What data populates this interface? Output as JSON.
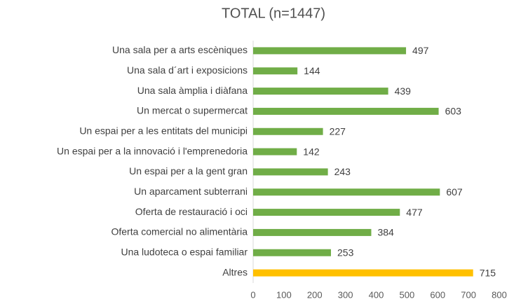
{
  "chart_data": {
    "type": "hbar",
    "title": "TOTAL (n=1447)",
    "categories": [
      "Una sala per a arts escèniques",
      "Una sala d´art i exposicions",
      "Una sala àmplia i diàfana",
      "Un mercat o supermercat",
      "Un espai per a les entitats del municipi",
      "Un espai per a la innovació i l'emprenedoria",
      "Un espai per a la gent gran",
      "Un aparcament subterrani",
      "Oferta de restauració i oci",
      "Oferta comercial no alimentària",
      "Una ludoteca o espai familiar",
      "Altres"
    ],
    "values": [
      497,
      144,
      439,
      603,
      227,
      142,
      243,
      607,
      477,
      384,
      253,
      715
    ],
    "colors": [
      "#70ad47",
      "#70ad47",
      "#70ad47",
      "#70ad47",
      "#70ad47",
      "#70ad47",
      "#70ad47",
      "#70ad47",
      "#70ad47",
      "#70ad47",
      "#70ad47",
      "#ffc000"
    ],
    "xlim": [
      0,
      800
    ],
    "xticks": [
      0,
      100,
      200,
      300,
      400,
      500,
      600,
      700,
      800
    ],
    "grid": false
  }
}
